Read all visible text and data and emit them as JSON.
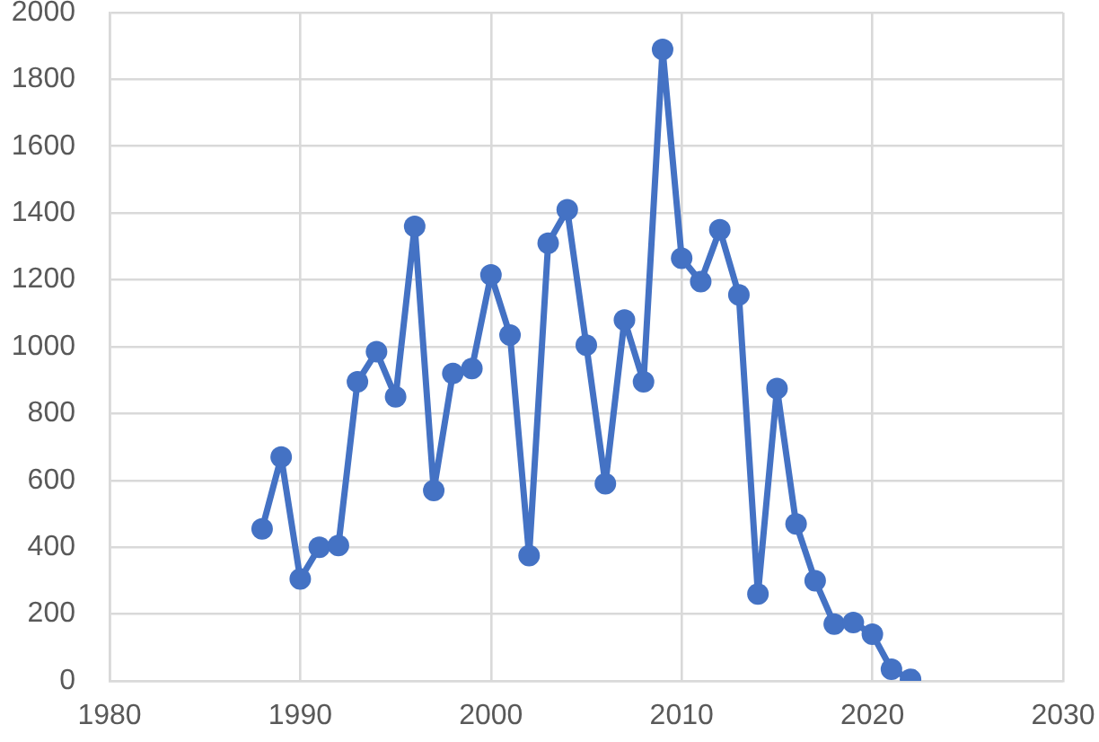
{
  "chart_data": {
    "type": "line",
    "x": [
      1988,
      1989,
      1990,
      1991,
      1992,
      1993,
      1994,
      1995,
      1996,
      1997,
      1998,
      1999,
      2000,
      2001,
      2002,
      2003,
      2004,
      2005,
      2006,
      2007,
      2008,
      2009,
      2010,
      2011,
      2012,
      2013,
      2014,
      2015,
      2016,
      2017,
      2018,
      2019,
      2020,
      2021,
      2022
    ],
    "values": [
      455,
      670,
      305,
      400,
      405,
      895,
      985,
      850,
      1360,
      570,
      920,
      935,
      1215,
      1035,
      375,
      1310,
      1410,
      1005,
      590,
      1080,
      895,
      1890,
      1265,
      1195,
      1350,
      1155,
      260,
      875,
      470,
      300,
      170,
      175,
      140,
      35,
      5
    ],
    "color": "#4472c4",
    "xlim": [
      1980,
      2030
    ],
    "xticks": [
      1980,
      1990,
      2000,
      2010,
      2020,
      2030
    ],
    "ylim": [
      0,
      2000
    ],
    "yticks": [
      0,
      200,
      400,
      600,
      800,
      1000,
      1200,
      1400,
      1600,
      1800,
      2000
    ],
    "grid": true,
    "marker": "circle",
    "line_style": "solid"
  }
}
